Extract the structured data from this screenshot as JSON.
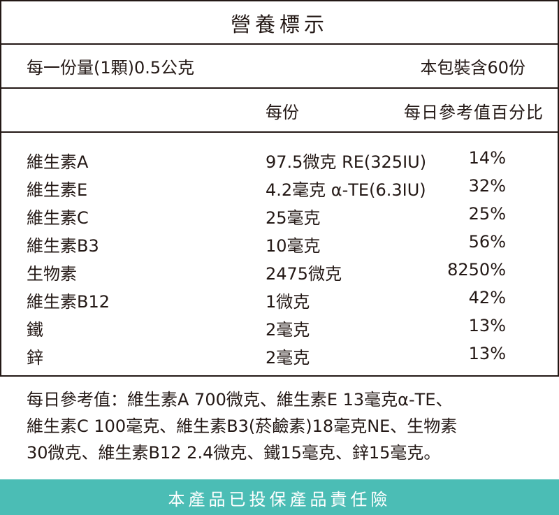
{
  "label": {
    "title": "營養標示",
    "serving_size": "每一份量(1顆)0.5公克",
    "servings_per_package": "本包裝含60份",
    "column_per_serving": "每份",
    "column_daily_value": "每日參考值百分比",
    "nutrients": [
      {
        "name": "維生素A",
        "amount": "97.5微克 RE(325IU)",
        "percent": "14%"
      },
      {
        "name": "維生素E",
        "amount": "4.2毫克 α-TE(6.3IU)",
        "percent": "32%"
      },
      {
        "name": "維生素C",
        "amount": "25毫克",
        "percent": "25%"
      },
      {
        "name": "維生素B3",
        "amount": "10毫克",
        "percent": "56%"
      },
      {
        "name": "生物素",
        "amount": "2475微克",
        "percent": "8250%"
      },
      {
        "name": "維生素B12",
        "amount": "1微克",
        "percent": "42%"
      },
      {
        "name": "鐵",
        "amount": "2毫克",
        "percent": "13%"
      },
      {
        "name": "鋅",
        "amount": "2毫克",
        "percent": "13%"
      }
    ]
  },
  "footnote": {
    "lines": [
      "每日參考值：維生素A 700微克、維生素E 13毫克α-TE、",
      "維生素C 100毫克、維生素B3(菸鹼素)18毫克NE、生物素",
      "30微克、維生素B12 2.4微克、鐵15毫克、鋅15毫克。"
    ]
  },
  "banner": {
    "text": "本產品已投保產品責任險",
    "background_color": "#4bbdb5"
  }
}
